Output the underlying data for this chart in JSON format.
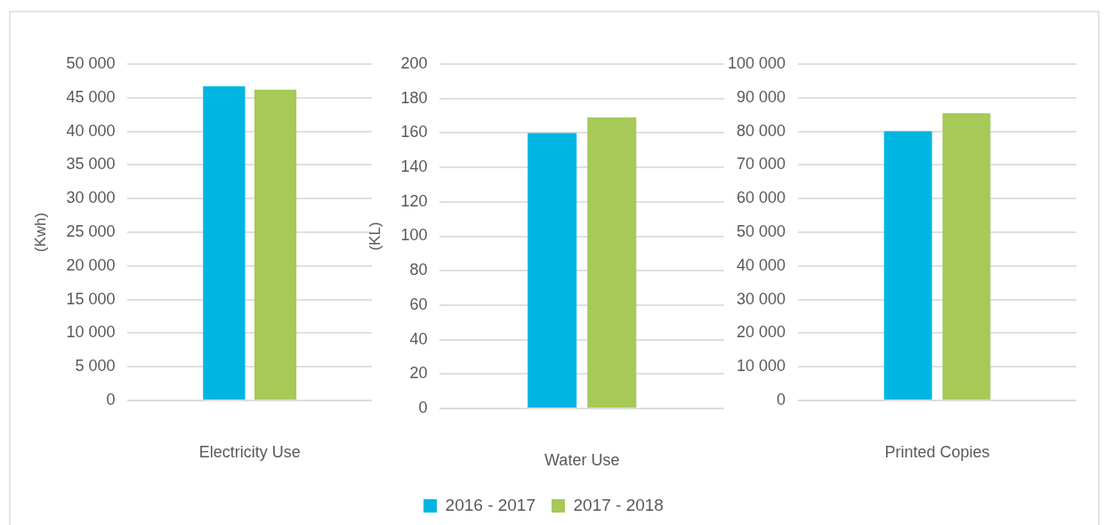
{
  "chart_data": [
    {
      "type": "bar",
      "ylabel": "(Kwh)",
      "categories": [
        "Electricity Use"
      ],
      "series": [
        {
          "color": "#00b5e2",
          "values": [
            46700
          ]
        },
        {
          "color": "#a6c957",
          "values": [
            46200
          ]
        }
      ],
      "ylim": [
        0,
        50000
      ],
      "yticks": [
        0,
        {
          "value": 5000,
          "label": "5 000"
        },
        {
          "value": 10000,
          "label": "10 000"
        },
        {
          "value": 15000,
          "label": "15 000"
        },
        {
          "value": 20000,
          "label": "20 000"
        },
        {
          "value": 25000,
          "label": "25 000"
        },
        {
          "value": 30000,
          "label": "30 000"
        },
        {
          "value": 35000,
          "label": "35 000"
        },
        {
          "value": 40000,
          "label": "40 000"
        },
        {
          "value": 45000,
          "label": "45 000"
        },
        {
          "value": 50000,
          "label": "50 000"
        }
      ],
      "grid": "y"
    },
    {
      "type": "bar",
      "ylabel": "(KL)",
      "categories": [
        "Water Use"
      ],
      "series": [
        {
          "name": "2016 - 2017",
          "color": "#00b5e2",
          "values": [
            160
          ]
        },
        {
          "name": "2017 - 2018",
          "color": "#a6c957",
          "values": [
            169
          ]
        }
      ],
      "ylim": [
        0,
        200
      ],
      "yticks": [
        0,
        20,
        40,
        60,
        80,
        100,
        120,
        140,
        160,
        180,
        200
      ],
      "grid": "y",
      "legend": "bottom"
    },
    {
      "type": "bar",
      "categories": [
        "Printed Copies"
      ],
      "series": [
        {
          "color": "#00b5e2",
          "values": [
            80000
          ]
        },
        {
          "color": "#a6c957",
          "values": [
            85400
          ]
        }
      ],
      "ylim": [
        0,
        100000
      ],
      "yticks": [
        0,
        {
          "value": 10000,
          "label": "10 000"
        },
        {
          "value": 20000,
          "label": "20 000"
        },
        {
          "value": 30000,
          "label": "30 000"
        },
        {
          "value": 40000,
          "label": "40 000"
        },
        {
          "value": 50000,
          "label": "50 000"
        },
        {
          "value": 60000,
          "label": "60 000"
        },
        {
          "value": 70000,
          "label": "70 000"
        },
        {
          "value": 80000,
          "label": "80 000"
        },
        {
          "value": 90000,
          "label": "90 000"
        },
        {
          "value": 100000,
          "label": "100 000"
        }
      ],
      "grid": "y"
    }
  ]
}
